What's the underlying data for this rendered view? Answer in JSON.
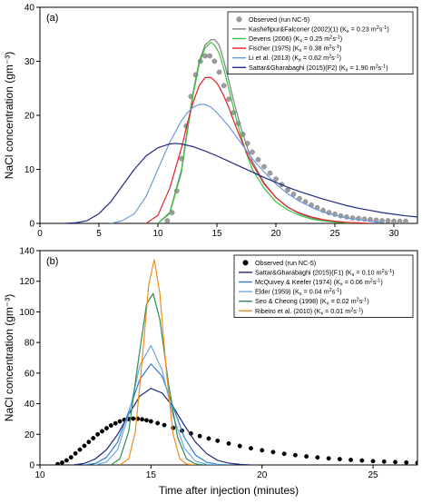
{
  "chart_data": [
    {
      "type": "line",
      "panel_label": "(a)",
      "xlabel": "",
      "ylabel": "NaCl concentration (gm⁻³)",
      "xlim": [
        0,
        32
      ],
      "ylim": [
        0,
        40
      ],
      "xticks": [
        0,
        5,
        10,
        15,
        20,
        25,
        30
      ],
      "xtick_labels": [
        "0",
        "5",
        "10",
        "15",
        "20",
        "25",
        "30"
      ],
      "yticks": [
        0,
        10,
        20,
        30,
        40
      ],
      "ytick_labels": [
        "0",
        "10",
        "20",
        "30",
        "40"
      ],
      "legend_position": "top-right",
      "observed": {
        "name": "Observed (run NC-5)",
        "color": "#9e9e9e",
        "x": [
          10.8,
          11.2,
          11.6,
          12.0,
          12.4,
          12.8,
          13.2,
          13.6,
          14.0,
          14.4,
          14.8,
          15.2,
          15.6,
          16.0,
          16.4,
          16.8,
          17.2,
          17.6,
          18.0,
          18.5,
          19.0,
          19.5,
          20.0,
          20.5,
          21.0,
          21.5,
          22.0,
          22.5,
          23.0,
          23.5,
          24.0,
          24.5,
          25.0,
          25.5,
          26.0,
          26.5,
          27.0,
          27.5,
          28.0,
          28.5,
          29.0,
          29.5,
          30.0,
          30.5,
          31.0
        ],
        "y": [
          0.5,
          2.0,
          6.0,
          12.0,
          18.0,
          23.5,
          27.5,
          30.0,
          31.0,
          31.0,
          30.0,
          28.0,
          25.5,
          23.0,
          20.5,
          18.5,
          16.5,
          14.8,
          13.2,
          11.8,
          10.5,
          9.3,
          8.2,
          7.2,
          6.2,
          5.4,
          4.6,
          4.0,
          3.4,
          2.9,
          2.4,
          2.0,
          1.7,
          1.4,
          1.2,
          1.0,
          0.9,
          0.8,
          0.7,
          0.6,
          0.5,
          0.5,
          0.4,
          0.4,
          0.4
        ]
      },
      "series": [
        {
          "name": "Kashefipur&Falconer (2002)(1) (K",
          "sub": "x",
          "tail": " = 0.23 m",
          "sup": "2",
          "tail2": "s",
          "sup2": "-1",
          "tail3": ")",
          "color": "#7f7f7f",
          "x": [
            10.0,
            11.0,
            12.0,
            12.5,
            13.0,
            13.5,
            14.0,
            14.5,
            14.8,
            15.2,
            15.6,
            16.0,
            16.5,
            17.0,
            17.5,
            18.0,
            19.0,
            20.0,
            21.0,
            22.0,
            23.0,
            24.0,
            25.0,
            26.0,
            27.0
          ],
          "y": [
            0,
            2.0,
            10.0,
            17.5,
            24.5,
            30.0,
            33.0,
            34.0,
            34.0,
            33.0,
            30.0,
            26.5,
            22.0,
            18.0,
            14.5,
            11.5,
            7.5,
            4.8,
            3.0,
            1.8,
            1.0,
            0.6,
            0.3,
            0.15,
            0
          ]
        },
        {
          "name": "Devens (2006) (K",
          "sub": "x",
          "tail": " = 0.25 m",
          "sup": "2",
          "tail2": "s",
          "sup2": "-1",
          "tail3": ")",
          "color": "#3ac43a",
          "x": [
            10.0,
            11.0,
            12.0,
            12.5,
            13.0,
            13.5,
            14.0,
            14.5,
            14.8,
            15.2,
            15.6,
            16.0,
            16.5,
            17.0,
            17.5,
            18.0,
            19.0,
            20.0,
            21.0,
            22.0,
            23.0,
            24.0,
            25.0,
            26.0,
            27.0
          ],
          "y": [
            0,
            1.8,
            9.5,
            17.0,
            24.0,
            29.5,
            32.5,
            33.5,
            33.0,
            31.5,
            28.5,
            25.0,
            20.5,
            16.5,
            13.0,
            10.0,
            6.5,
            4.0,
            2.5,
            1.5,
            0.8,
            0.45,
            0.25,
            0.1,
            0
          ]
        },
        {
          "name": "Fischer (1975) (K",
          "sub": "x",
          "tail": " = 0.38 m",
          "sup": "2",
          "tail2": "s",
          "sup2": "-1",
          "tail3": ")",
          "color": "#e0212b",
          "x": [
            9.0,
            10.0,
            11.0,
            12.0,
            12.5,
            13.0,
            13.5,
            14.0,
            14.5,
            15.0,
            15.5,
            16.0,
            16.5,
            17.0,
            17.5,
            18.0,
            19.0,
            20.0,
            21.0,
            22.0,
            23.0,
            24.0,
            25.0,
            26.0,
            27.0,
            28.0
          ],
          "y": [
            0,
            1.5,
            6.5,
            14.0,
            18.5,
            22.5,
            25.5,
            27.0,
            27.0,
            26.0,
            24.0,
            21.5,
            18.5,
            15.8,
            13.2,
            11.0,
            7.3,
            4.8,
            3.0,
            1.9,
            1.2,
            0.7,
            0.4,
            0.2,
            0.1,
            0
          ]
        },
        {
          "name": "Li et al. (2013) (K",
          "sub": "x",
          "tail": " = 0.62 m",
          "sup": "2",
          "tail2": "s",
          "sup2": "-1",
          "tail3": ")",
          "color": "#6f9bd8",
          "x": [
            6.0,
            7.0,
            8.0,
            9.0,
            10.0,
            11.0,
            12.0,
            12.5,
            13.0,
            13.5,
            14.0,
            14.5,
            15.0,
            16.0,
            17.0,
            18.0,
            19.0,
            20.0,
            21.0,
            22.0,
            23.0,
            24.0,
            25.0,
            26.0,
            27.0,
            28.0,
            29.0
          ],
          "y": [
            0,
            0.5,
            1.8,
            5.0,
            10.0,
            15.0,
            19.0,
            20.5,
            21.5,
            22.0,
            22.0,
            21.5,
            20.5,
            18.0,
            15.0,
            12.0,
            9.5,
            7.3,
            5.5,
            4.1,
            3.0,
            2.1,
            1.5,
            1.0,
            0.7,
            0.4,
            0.2
          ]
        },
        {
          "name": "Sattar&Gharabaghi (2015)(F2) (K",
          "sub": "x",
          "tail": " = 1.90 m",
          "sup": "2",
          "tail2": "s",
          "sup2": "-1",
          "tail3": ")",
          "color": "#1f2a80",
          "x": [
            2.0,
            3.0,
            4.0,
            5.0,
            6.0,
            7.0,
            8.0,
            9.0,
            10.0,
            11.0,
            11.5,
            12.0,
            13.0,
            14.0,
            15.0,
            16.0,
            17.0,
            18.0,
            19.0,
            20.0,
            21.0,
            22.0,
            23.0,
            24.0,
            25.0,
            26.0,
            27.0,
            28.0,
            29.0,
            30.0,
            31.0,
            32.0
          ],
          "y": [
            0,
            0.1,
            0.5,
            1.8,
            4.0,
            7.0,
            10.0,
            12.5,
            14.0,
            14.7,
            14.8,
            14.7,
            14.2,
            13.4,
            12.5,
            11.5,
            10.5,
            9.5,
            8.5,
            7.6,
            6.7,
            5.9,
            5.2,
            4.5,
            3.9,
            3.3,
            2.8,
            2.4,
            2.0,
            1.7,
            1.4,
            1.2
          ]
        }
      ]
    },
    {
      "type": "line",
      "panel_label": "(b)",
      "xlabel": "Time after injection (minutes)",
      "ylabel": "NaCl concentration (gm⁻³)",
      "xlim": [
        10,
        27
      ],
      "ylim": [
        0,
        140
      ],
      "xticks": [
        10,
        15,
        20,
        25
      ],
      "xtick_labels": [
        "10",
        "15",
        "20",
        "25"
      ],
      "yticks": [
        0,
        20,
        40,
        60,
        80,
        100,
        120,
        140
      ],
      "ytick_labels": [
        "0",
        "20",
        "40",
        "60",
        "80",
        "100",
        "120",
        "140"
      ],
      "legend_position": "top-right",
      "observed": {
        "name": "Observed (run NC-5)",
        "color": "#000000",
        "x": [
          10.8,
          11.0,
          11.2,
          11.4,
          11.6,
          11.8,
          12.0,
          12.2,
          12.4,
          12.6,
          12.8,
          13.0,
          13.2,
          13.4,
          13.6,
          13.8,
          14.0,
          14.2,
          14.4,
          14.6,
          14.8,
          15.0,
          15.3,
          15.6,
          16.0,
          16.4,
          16.8,
          17.2,
          17.6,
          18.0,
          18.5,
          19.0,
          19.5,
          20.0,
          20.5,
          21.0,
          21.5,
          22.0,
          22.5,
          23.0,
          23.5,
          24.0,
          24.5,
          25.0,
          25.5,
          26.0,
          26.5,
          27.0
        ],
        "y": [
          0.5,
          1.5,
          3.0,
          5.0,
          7.5,
          10.0,
          12.5,
          15.0,
          17.5,
          20.0,
          22.0,
          24.0,
          25.8,
          27.2,
          28.5,
          29.5,
          30.0,
          30.3,
          30.2,
          29.8,
          29.2,
          28.5,
          27.3,
          26.0,
          24.2,
          22.4,
          20.6,
          18.9,
          17.3,
          15.8,
          14.0,
          12.4,
          10.9,
          9.6,
          8.4,
          7.3,
          6.4,
          5.6,
          4.9,
          4.3,
          3.8,
          3.3,
          2.9,
          2.5,
          2.2,
          1.9,
          1.6,
          1.4
        ]
      },
      "series": [
        {
          "name": "Sattar&Gharabaghi (2015)(F1) (K",
          "sub": "x",
          "tail": " = 0.10 m",
          "sup": "2",
          "tail2": "s",
          "sup2": "-1",
          "tail3": ")",
          "color": "#1f2a80",
          "x": [
            11.5,
            12.0,
            12.5,
            13.0,
            13.5,
            14.0,
            14.5,
            15.0,
            15.5,
            16.0,
            16.5,
            17.0,
            17.5,
            18.0,
            18.5,
            19.0,
            19.5
          ],
          "y": [
            0,
            1.0,
            4.0,
            10.0,
            20.0,
            33.0,
            45.0,
            50.0,
            47.0,
            38.0,
            26.0,
            15.0,
            7.5,
            3.0,
            1.2,
            0.4,
            0
          ]
        },
        {
          "name": "McQuivey & Keefer (1974) (K",
          "sub": "x",
          "tail": " = 0.06 m",
          "sup": "2",
          "tail2": "s",
          "sup2": "-1",
          "tail3": ")",
          "color": "#2d7dd2",
          "x": [
            12.0,
            12.5,
            13.0,
            13.5,
            14.0,
            14.5,
            15.0,
            15.5,
            16.0,
            16.5,
            17.0,
            17.5,
            18.0,
            18.5
          ],
          "y": [
            0,
            1.0,
            5.0,
            15.0,
            35.0,
            56.0,
            66.0,
            58.0,
            38.0,
            18.0,
            6.5,
            1.8,
            0.4,
            0
          ]
        },
        {
          "name": "Elder (1959) (K",
          "sub": "x",
          "tail": " = 0.04 m",
          "sup": "2",
          "tail2": "s",
          "sup2": "-1",
          "tail3": ")",
          "color": "#6fa8dc",
          "x": [
            12.5,
            13.0,
            13.5,
            14.0,
            14.5,
            15.0,
            15.5,
            16.0,
            16.5,
            17.0,
            17.5,
            18.0
          ],
          "y": [
            0,
            2.0,
            10.0,
            33.0,
            65.0,
            78.0,
            62.0,
            32.0,
            11.0,
            2.5,
            0.4,
            0
          ]
        },
        {
          "name": "Seo & Cheong (1998) (K",
          "sub": "x",
          "tail": " = 0.02 m",
          "sup": "2",
          "tail2": "s",
          "sup2": "-1",
          "tail3": ")",
          "color": "#2e8b57",
          "x": [
            13.2,
            13.6,
            14.0,
            14.4,
            14.8,
            15.1,
            15.4,
            15.8,
            16.2,
            16.6,
            17.0,
            17.4
          ],
          "y": [
            0,
            4.0,
            22.0,
            65.0,
            105.0,
            112.0,
            95.0,
            52.0,
            18.0,
            4.0,
            0.6,
            0
          ]
        },
        {
          "name": "Ribeiro et al. (2010) (K",
          "sub": "x",
          "tail": " = 0.01 m",
          "sup": "2",
          "tail2": "s",
          "sup2": "-1",
          "tail3": ")",
          "color": "#f28c1e",
          "x": [
            13.6,
            14.0,
            14.3,
            14.6,
            14.9,
            15.15,
            15.4,
            15.7,
            16.0,
            16.3,
            16.6,
            17.0
          ],
          "y": [
            0,
            4.0,
            22.0,
            68.0,
            118.0,
            134.0,
            112.0,
            60.0,
            20.0,
            4.0,
            0.6,
            0
          ]
        }
      ]
    }
  ]
}
